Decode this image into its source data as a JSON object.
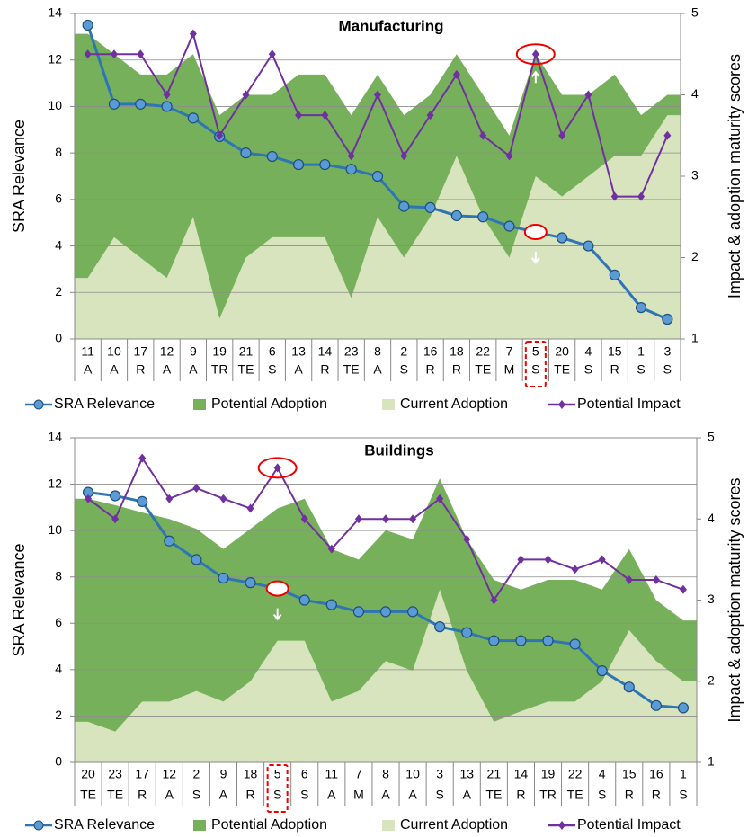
{
  "chart_data": [
    {
      "type": "combo",
      "title": "Manufacturing",
      "y_label": "SRA Relevance",
      "y2_label": "Impact & adoption maturity scores",
      "categories": [
        "11",
        "10",
        "17",
        "12",
        "9",
        "19",
        "21",
        "6",
        "13",
        "14",
        "23",
        "8",
        "2",
        "16",
        "18",
        "22",
        "7",
        "5",
        "20",
        "4",
        "15",
        "1",
        "3"
      ],
      "category_groups": [
        "A",
        "A",
        "R",
        "A",
        "A",
        "TR",
        "TE",
        "S",
        "A",
        "R",
        "TE",
        "A",
        "S",
        "R",
        "R",
        "TE",
        "M",
        "S",
        "TE",
        "S",
        "R",
        "S",
        "S"
      ],
      "ylim": [
        0,
        14
      ],
      "yticks": [
        0,
        2,
        4,
        6,
        8,
        10,
        12,
        14
      ],
      "y2lim": [
        1,
        5
      ],
      "y2ticks": [
        1,
        2,
        3,
        4,
        5
      ],
      "grid": true,
      "series": [
        {
          "name": "SRA Relevance",
          "type": "line",
          "marker": "circle",
          "color": "#2e75b6",
          "values": [
            13.5,
            10.1,
            10.1,
            10.0,
            9.5,
            8.7,
            8.0,
            7.85,
            7.5,
            7.5,
            7.3,
            7.0,
            5.7,
            5.65,
            5.3,
            5.25,
            4.85,
            4.6,
            4.35,
            4.0,
            2.75,
            1.35,
            0.85
          ]
        },
        {
          "name": "Potential Adoption",
          "type": "area",
          "axis": "y2",
          "color": "#77b05a",
          "values": [
            4.75,
            4.5,
            4.25,
            4.25,
            4.5,
            3.75,
            4,
            4,
            4.25,
            4.25,
            3.75,
            4.25,
            3.75,
            4,
            4.5,
            4,
            3.5,
            4.5,
            4,
            4,
            4.25,
            3.75,
            4
          ]
        },
        {
          "name": "Current Adoption",
          "type": "area",
          "axis": "y2",
          "color": "#d7e4bd",
          "values": [
            1.75,
            2.25,
            2,
            1.75,
            2.5,
            1.25,
            2,
            2.25,
            2.25,
            2.25,
            1.5,
            2.5,
            2,
            2.5,
            3.25,
            2.5,
            2,
            3,
            2.75,
            3,
            3.25,
            3.25,
            3.75
          ]
        },
        {
          "name": "Potential Impact",
          "type": "line",
          "marker": "diamond",
          "axis": "y2",
          "color": "#7030a0",
          "values": [
            4.5,
            4.5,
            4.5,
            4,
            4.75,
            3.5,
            4,
            4.5,
            3.75,
            3.75,
            3.25,
            4,
            3.25,
            3.75,
            4.25,
            3.5,
            3.25,
            4.5,
            3.5,
            4,
            2.75,
            2.75,
            3.5
          ]
        }
      ]
    },
    {
      "type": "combo",
      "title": "Buildings",
      "y_label": "SRA Relevance",
      "y2_label": "Impact & adoption maturity scores",
      "categories": [
        "20",
        "23",
        "17",
        "12",
        "2",
        "9",
        "18",
        "5",
        "6",
        "11",
        "7",
        "8",
        "10",
        "3",
        "13",
        "21",
        "14",
        "19",
        "22",
        "4",
        "15",
        "16",
        "1"
      ],
      "category_groups": [
        "TE",
        "TE",
        "R",
        "A",
        "S",
        "A",
        "R",
        "S",
        "S",
        "A",
        "M",
        "A",
        "A",
        "S",
        "A",
        "TE",
        "R",
        "TR",
        "TE",
        "S",
        "R",
        "R",
        "S"
      ],
      "ylim": [
        0,
        14
      ],
      "yticks": [
        0,
        2,
        4,
        6,
        8,
        10,
        12,
        14
      ],
      "y2lim": [
        1,
        5
      ],
      "y2ticks": [
        1,
        2,
        3,
        4,
        5
      ],
      "grid": true,
      "series": [
        {
          "name": "SRA Relevance",
          "type": "line",
          "marker": "circle",
          "color": "#2e75b6",
          "values": [
            11.65,
            11.5,
            11.25,
            9.55,
            8.75,
            7.95,
            7.75,
            7.5,
            7.0,
            6.8,
            6.5,
            6.5,
            6.5,
            5.85,
            5.6,
            5.25,
            5.25,
            5.25,
            5.1,
            3.95,
            3.25,
            2.45,
            2.35
          ]
        },
        {
          "name": "Potential Adoption",
          "type": "area",
          "axis": "y2",
          "color": "#77b05a",
          "values": [
            4.25,
            4.17,
            4.08,
            4,
            3.88,
            3.63,
            3.88,
            4.13,
            4.25,
            3.63,
            3.5,
            3.86,
            3.75,
            4.5,
            3.75,
            3.25,
            3.13,
            3.25,
            3.25,
            3.13,
            3.63,
            3,
            2.75
          ]
        },
        {
          "name": "Current Adoption",
          "type": "area",
          "axis": "y2",
          "color": "#d7e4bd",
          "values": [
            1.5,
            1.38,
            1.75,
            1.75,
            1.88,
            1.75,
            2,
            2.5,
            2.5,
            1.75,
            1.88,
            2.25,
            2.13,
            3.13,
            2.13,
            1.5,
            1.63,
            1.75,
            1.75,
            2,
            2.63,
            2.25,
            2
          ]
        },
        {
          "name": "Potential Impact",
          "type": "line",
          "marker": "diamond",
          "axis": "y2",
          "color": "#7030a0",
          "values": [
            4.25,
            4,
            4.75,
            4.25,
            4.38,
            4.25,
            4.13,
            4.63,
            4,
            3.63,
            4,
            4,
            4,
            4.25,
            3.75,
            3,
            3.5,
            3.5,
            3.38,
            3.5,
            3.25,
            3.25,
            3.13
          ]
        }
      ]
    }
  ]
}
